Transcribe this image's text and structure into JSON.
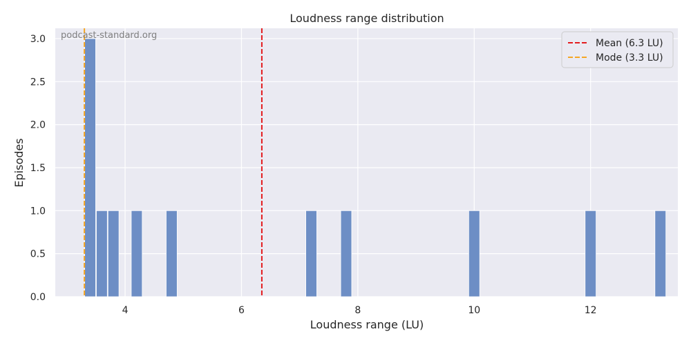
{
  "chart_data": {
    "type": "bar",
    "title": "Loudness range distribution",
    "xlabel": "Loudness range (LU)",
    "ylabel": "Episodes",
    "xlim": [
      2.8,
      13.5
    ],
    "ylim": [
      0,
      3.12
    ],
    "xticks": [
      4,
      6,
      8,
      10,
      12
    ],
    "yticks": [
      0.0,
      0.5,
      1.0,
      1.5,
      2.0,
      2.5,
      3.0
    ],
    "grid": true,
    "bin_width": 0.2,
    "bars": [
      {
        "x": 3.4,
        "count": 3
      },
      {
        "x": 3.6,
        "count": 1
      },
      {
        "x": 3.8,
        "count": 1
      },
      {
        "x": 4.2,
        "count": 1
      },
      {
        "x": 4.8,
        "count": 1
      },
      {
        "x": 7.2,
        "count": 1
      },
      {
        "x": 7.8,
        "count": 1
      },
      {
        "x": 10.0,
        "count": 1
      },
      {
        "x": 12.0,
        "count": 1
      },
      {
        "x": 13.2,
        "count": 1
      }
    ],
    "bar_color": "#6d8ec5",
    "vlines": [
      {
        "label": "Mean (6.3 LU)",
        "x": 6.35,
        "color": "#e31a1c",
        "style": "dashed"
      },
      {
        "label": "Mode (3.3 LU)",
        "x": 3.3,
        "color": "#f5a623",
        "style": "dashed"
      }
    ],
    "legend_position": "top-right",
    "watermark": "podcast-standard.org"
  }
}
